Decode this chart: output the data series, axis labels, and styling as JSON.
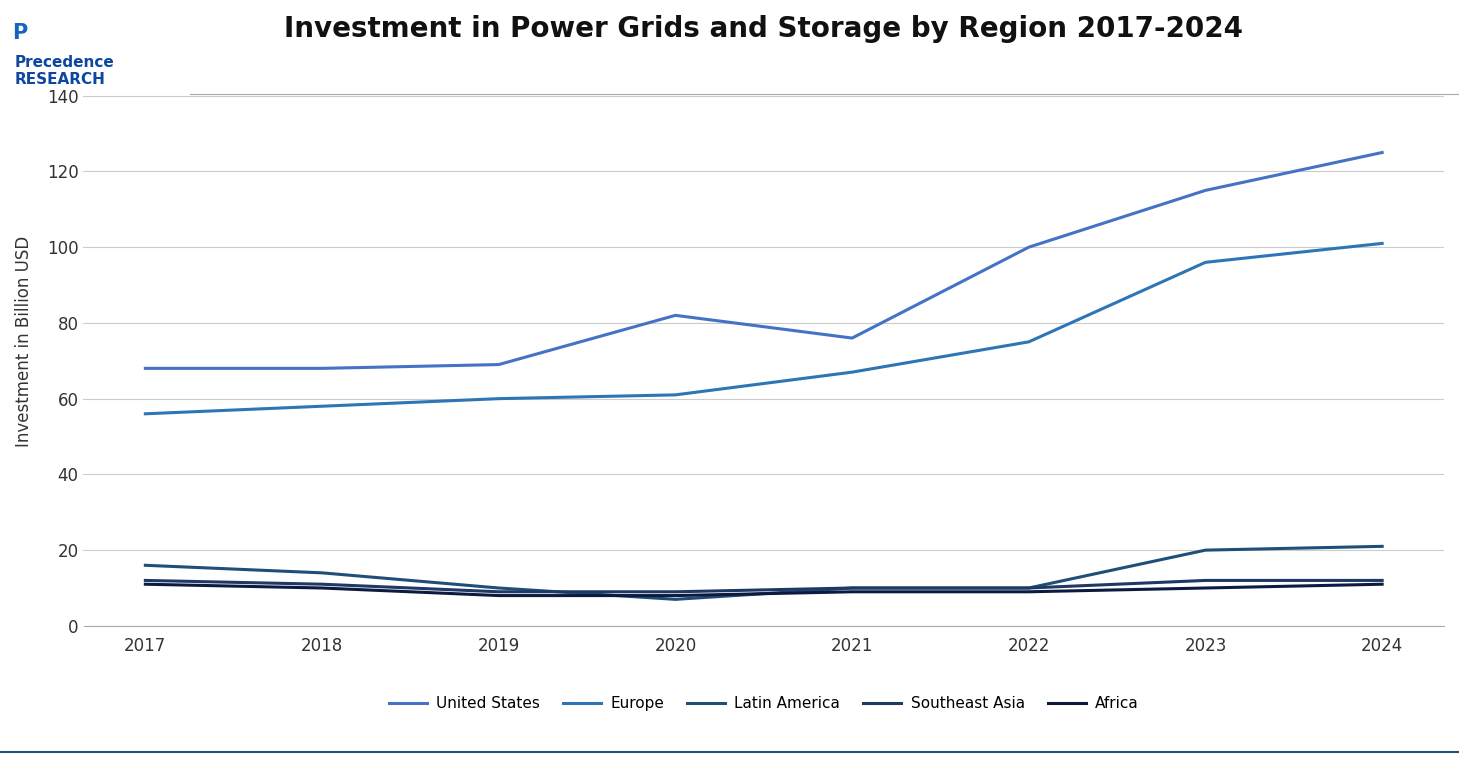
{
  "title": "Investment in Power Grids and Storage by Region 2017-2024",
  "ylabel": "Investment in Billion USD",
  "years": [
    2017,
    2018,
    2019,
    2020,
    2021,
    2022,
    2023,
    2024
  ],
  "series": {
    "United States": {
      "values": [
        68,
        68,
        69,
        82,
        76,
        100,
        115,
        125
      ],
      "color": "#4472C4",
      "linewidth": 2.2
    },
    "Europe": {
      "values": [
        56,
        58,
        60,
        61,
        67,
        75,
        96,
        101
      ],
      "color": "#2E75B6",
      "linewidth": 2.2
    },
    "Latin America": {
      "values": [
        16,
        14,
        10,
        7,
        10,
        10,
        20,
        21
      ],
      "color": "#1F4E79",
      "linewidth": 2.2
    },
    "Southeast Asia": {
      "values": [
        12,
        11,
        9,
        9,
        10,
        10,
        12,
        12
      ],
      "color": "#203864",
      "linewidth": 2.2
    },
    "Africa": {
      "values": [
        11,
        10,
        8,
        8,
        9,
        9,
        10,
        11
      ],
      "color": "#0D1A40",
      "linewidth": 2.2
    }
  },
  "ylim": [
    0,
    150
  ],
  "yticks": [
    0,
    20,
    40,
    60,
    80,
    100,
    120,
    140
  ],
  "background_color": "#FFFFFF",
  "plot_background": "#FFFFFF",
  "grid_color": "#CCCCCC",
  "title_fontsize": 20,
  "label_fontsize": 12,
  "tick_fontsize": 12,
  "legend_fontsize": 11
}
